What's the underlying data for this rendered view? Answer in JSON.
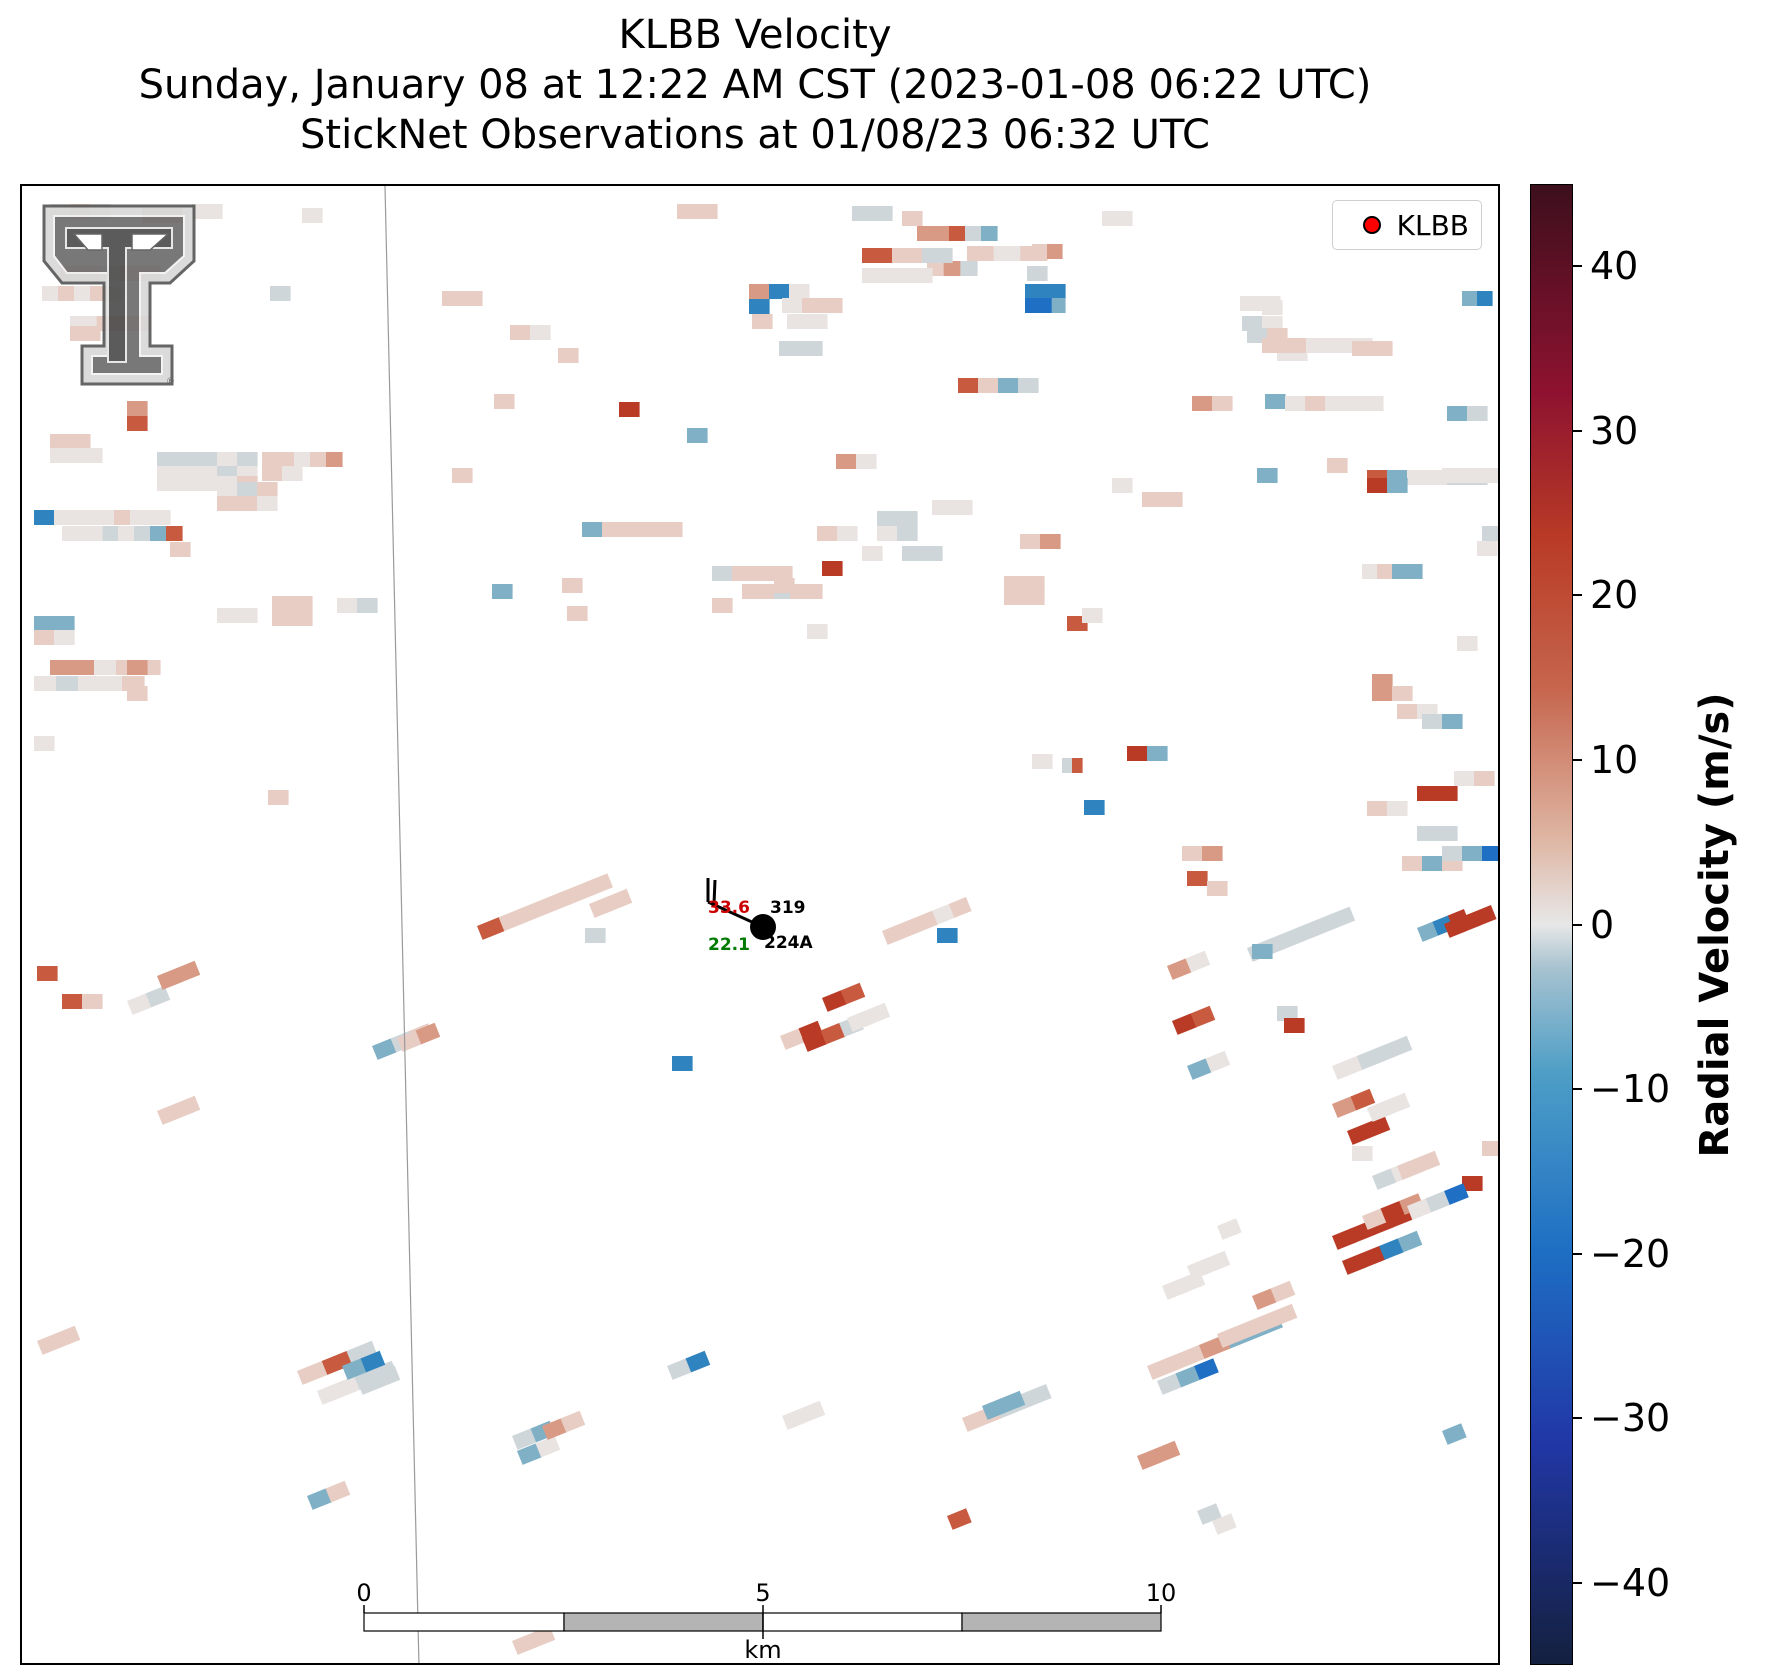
{
  "title": {
    "line1": "KLBB Velocity",
    "line2": "Sunday, January 08 at 12:22 AM CST (2023-01-08 06:22 UTC)",
    "line3": "StickNet Observations at 01/08/23 06:32 UTC"
  },
  "legend": {
    "label": "KLBB",
    "marker_color": "#ff0000"
  },
  "station": {
    "temperature": "33.6",
    "dewpoint": "22.1",
    "top_id": "319",
    "bottom_id": "224A",
    "temp_color": "#cc0000",
    "dew_color": "#007a00"
  },
  "scalebar": {
    "labels": [
      "0",
      "5",
      "10"
    ],
    "unit": "km"
  },
  "colorbar": {
    "label": "Radial Velocity (m/s)",
    "min": -45,
    "max": 45,
    "ticks": [
      40,
      30,
      20,
      10,
      0,
      -10,
      -20,
      -30,
      -40
    ],
    "tick_labels": [
      "40",
      "30",
      "20",
      "10",
      "0",
      "−10",
      "−20",
      "−30",
      "−40"
    ]
  },
  "logo": {
    "name": "texas-tech-double-t-logo"
  }
}
